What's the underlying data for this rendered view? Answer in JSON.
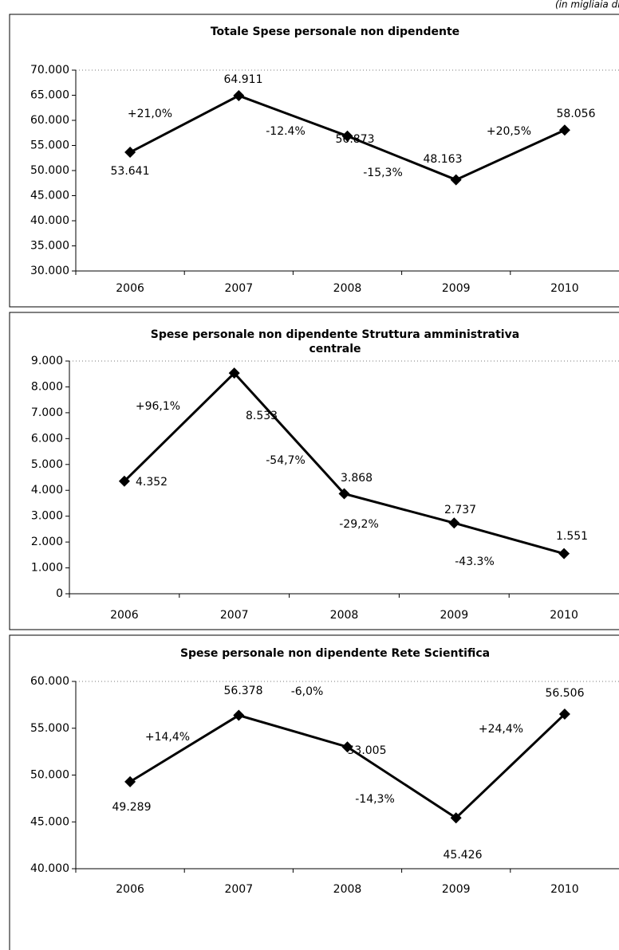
{
  "note": "(in migliaia di euro)",
  "chart_data": [
    {
      "type": "line",
      "title": [
        "Totale Spese personale non dipendente"
      ],
      "categories": [
        "2006",
        "2007",
        "2008",
        "2009",
        "2010"
      ],
      "values": [
        53641,
        64911,
        56873,
        48163,
        58056
      ],
      "value_labels": [
        "53.641",
        "64.911",
        "56.873",
        "48.163",
        "58.056"
      ],
      "annotations": [
        "+21,0%",
        "-12.4%",
        "-15,3%",
        "+20,5%"
      ],
      "color": "#000000",
      "ylim": [
        30000,
        70000
      ],
      "yticks": [
        {
          "value": 30000,
          "label": "30.000"
        },
        {
          "value": 35000,
          "label": "35.000"
        },
        {
          "value": 40000,
          "label": "40.000"
        },
        {
          "value": 45000,
          "label": "45.000"
        },
        {
          "value": 50000,
          "label": "50.000"
        },
        {
          "value": 55000,
          "label": "55.000"
        },
        {
          "value": 60000,
          "label": "60.000"
        },
        {
          "value": 65000,
          "label": "65.000"
        },
        {
          "value": 70000,
          "label": "70.000"
        }
      ]
    },
    {
      "type": "line",
      "title": [
        "Spese personale non dipendente Struttura amministrativa",
        "centrale"
      ],
      "categories": [
        "2006",
        "2007",
        "2008",
        "2009",
        "2010"
      ],
      "values": [
        4352,
        8533,
        3868,
        2737,
        1551
      ],
      "value_labels": [
        "4.352",
        "8.533",
        "3.868",
        "2.737",
        "1.551"
      ],
      "annotations": [
        "+96,1%",
        "-54,7%",
        "-29,2%",
        "-43.3%"
      ],
      "color": "#000000",
      "ylim": [
        0,
        9000
      ],
      "yticks": [
        0,
        {
          "value": 1000,
          "label": "1.000"
        },
        {
          "value": 2000,
          "label": "2.000"
        },
        {
          "value": 3000,
          "label": "3.000"
        },
        {
          "value": 4000,
          "label": "4.000"
        },
        {
          "value": 5000,
          "label": "5.000"
        },
        {
          "value": 6000,
          "label": "6.000"
        },
        {
          "value": 7000,
          "label": "7.000"
        },
        {
          "value": 8000,
          "label": "8.000"
        },
        {
          "value": 9000,
          "label": "9.000"
        }
      ]
    },
    {
      "type": "line",
      "title": [
        "Spese personale non dipendente Rete Scientifica"
      ],
      "categories": [
        "2006",
        "2007",
        "2008",
        "2009",
        "2010"
      ],
      "values": [
        49289,
        56378,
        53005,
        45426,
        56506
      ],
      "value_labels": [
        "49.289",
        "56.378",
        "53.005",
        "45.426",
        "56.506"
      ],
      "annotations": [
        "+14,4%",
        "-6,0%",
        "-14,3%",
        "+24,4%"
      ],
      "color": "#000000",
      "ylim": [
        40000,
        60000
      ],
      "yticks": [
        {
          "value": 40000,
          "label": "40.000"
        },
        {
          "value": 45000,
          "label": "45.000"
        },
        {
          "value": 50000,
          "label": "50.000"
        },
        {
          "value": 55000,
          "label": "55.000"
        },
        {
          "value": 60000,
          "label": "60.000"
        }
      ]
    }
  ]
}
